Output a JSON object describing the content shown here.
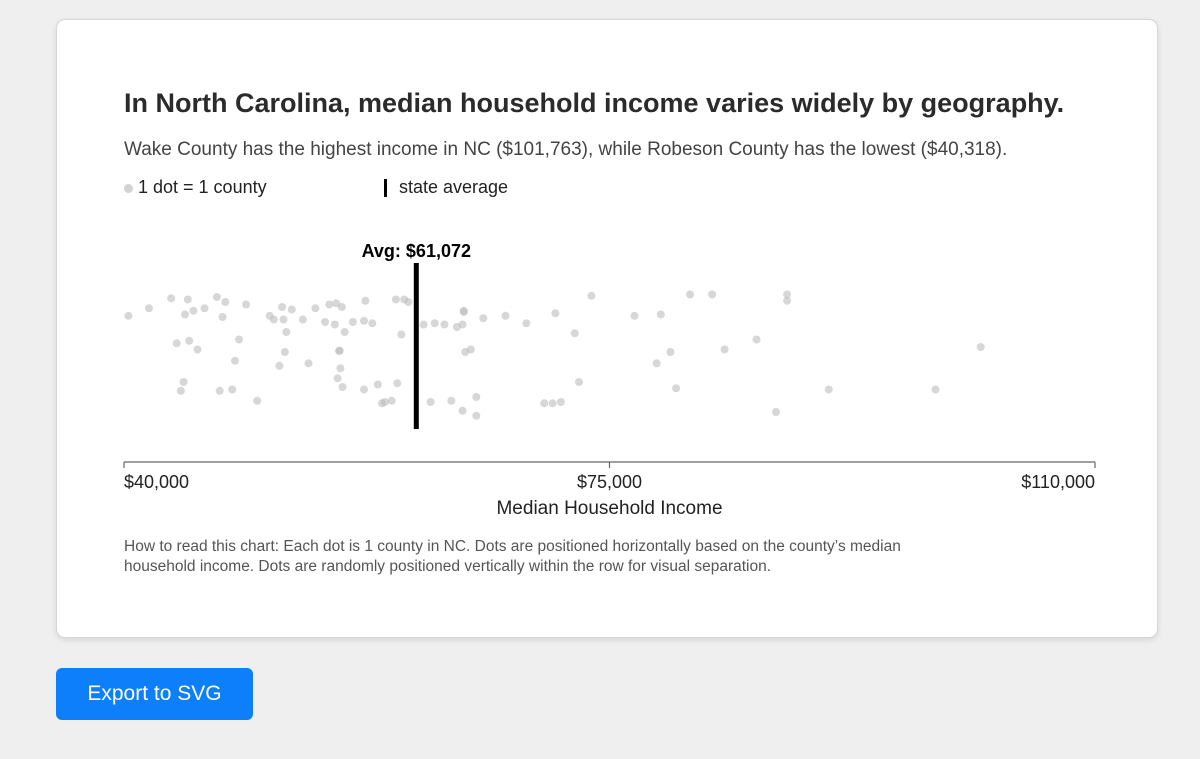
{
  "header": {
    "title": "In North Carolina, median household income varies widely by geography.",
    "subtitle": "Wake County has the highest income in NC ($101,763), while Robeson County has the lowest ($40,318)."
  },
  "legend": {
    "dot_label": "1 dot = 1 county",
    "line_label": "state average"
  },
  "note": "How to read this chart: Each dot is 1 county in NC. Dots are positioned horizontally based on the county’s median household income. Dots are randomly positioned vertically within the row for visual separation.",
  "export_button": {
    "label": "Export to SVG"
  },
  "colors": {
    "dot": "#bdbdbd",
    "average_line": "#000000",
    "button": "#0d7ffb",
    "page_background": "#efefef"
  },
  "chart_data": {
    "type": "scatter",
    "title": "In North Carolina, median household income varies widely by geography.",
    "xlabel": "Median Household Income",
    "ylabel": "",
    "xlim": [
      40000,
      110000
    ],
    "x_ticks": [
      {
        "value": 40000,
        "label": "$40,000"
      },
      {
        "value": 75000,
        "label": "$75,000"
      },
      {
        "value": 110000,
        "label": "$110,000"
      }
    ],
    "average": {
      "value": 61072,
      "label": "Avg: $61,072"
    },
    "grid": false,
    "y_meaning": "random vertical jitter (0 = top of row, 1 = bottom of row)",
    "points": [
      {
        "x": 40318,
        "y": 0.27
      },
      {
        "x": 41800,
        "y": 0.21
      },
      {
        "x": 43400,
        "y": 0.13
      },
      {
        "x": 43800,
        "y": 0.49
      },
      {
        "x": 44100,
        "y": 0.87
      },
      {
        "x": 44300,
        "y": 0.8
      },
      {
        "x": 44400,
        "y": 0.26
      },
      {
        "x": 44600,
        "y": 0.14
      },
      {
        "x": 44700,
        "y": 0.47
      },
      {
        "x": 45000,
        "y": 0.23
      },
      {
        "x": 45300,
        "y": 0.54
      },
      {
        "x": 45800,
        "y": 0.21
      },
      {
        "x": 46700,
        "y": 0.12
      },
      {
        "x": 46900,
        "y": 0.87
      },
      {
        "x": 47100,
        "y": 0.28
      },
      {
        "x": 47300,
        "y": 0.16
      },
      {
        "x": 47800,
        "y": 0.86
      },
      {
        "x": 48000,
        "y": 0.63
      },
      {
        "x": 48300,
        "y": 0.46
      },
      {
        "x": 48800,
        "y": 0.18
      },
      {
        "x": 49600,
        "y": 0.95
      },
      {
        "x": 50500,
        "y": 0.27
      },
      {
        "x": 50800,
        "y": 0.3
      },
      {
        "x": 51200,
        "y": 0.67
      },
      {
        "x": 51400,
        "y": 0.2
      },
      {
        "x": 51500,
        "y": 0.3
      },
      {
        "x": 51600,
        "y": 0.56
      },
      {
        "x": 51700,
        "y": 0.4
      },
      {
        "x": 52100,
        "y": 0.22
      },
      {
        "x": 52900,
        "y": 0.3
      },
      {
        "x": 53300,
        "y": 0.65
      },
      {
        "x": 53800,
        "y": 0.21
      },
      {
        "x": 54500,
        "y": 0.32
      },
      {
        "x": 54800,
        "y": 0.18
      },
      {
        "x": 55200,
        "y": 0.34
      },
      {
        "x": 55300,
        "y": 0.17
      },
      {
        "x": 55400,
        "y": 0.77
      },
      {
        "x": 55500,
        "y": 0.55
      },
      {
        "x": 55550,
        "y": 0.55
      },
      {
        "x": 55600,
        "y": 0.69
      },
      {
        "x": 55700,
        "y": 0.2
      },
      {
        "x": 55750,
        "y": 0.84
      },
      {
        "x": 55900,
        "y": 0.4
      },
      {
        "x": 56500,
        "y": 0.32
      },
      {
        "x": 57300,
        "y": 0.31
      },
      {
        "x": 57300,
        "y": 0.86
      },
      {
        "x": 57400,
        "y": 0.15
      },
      {
        "x": 57900,
        "y": 0.33
      },
      {
        "x": 58300,
        "y": 0.82
      },
      {
        "x": 58600,
        "y": 0.97
      },
      {
        "x": 58800,
        "y": 0.96
      },
      {
        "x": 59300,
        "y": 0.95
      },
      {
        "x": 59600,
        "y": 0.14
      },
      {
        "x": 59700,
        "y": 0.81
      },
      {
        "x": 60000,
        "y": 0.42
      },
      {
        "x": 60200,
        "y": 0.14
      },
      {
        "x": 60500,
        "y": 0.16
      },
      {
        "x": 61600,
        "y": 0.34
      },
      {
        "x": 62100,
        "y": 0.96
      },
      {
        "x": 62400,
        "y": 0.33
      },
      {
        "x": 63100,
        "y": 0.34
      },
      {
        "x": 63600,
        "y": 0.95
      },
      {
        "x": 64000,
        "y": 0.36
      },
      {
        "x": 64400,
        "y": 0.34
      },
      {
        "x": 64400,
        "y": 1.03
      },
      {
        "x": 64500,
        "y": 0.23
      },
      {
        "x": 64500,
        "y": 0.24
      },
      {
        "x": 64600,
        "y": 0.56
      },
      {
        "x": 65000,
        "y": 0.54
      },
      {
        "x": 65400,
        "y": 0.92
      },
      {
        "x": 65400,
        "y": 1.07
      },
      {
        "x": 65900,
        "y": 0.29
      },
      {
        "x": 67500,
        "y": 0.27
      },
      {
        "x": 69000,
        "y": 0.33
      },
      {
        "x": 70300,
        "y": 0.97
      },
      {
        "x": 70900,
        "y": 0.97
      },
      {
        "x": 71100,
        "y": 0.25
      },
      {
        "x": 71500,
        "y": 0.96
      },
      {
        "x": 72500,
        "y": 0.41
      },
      {
        "x": 72800,
        "y": 0.8
      },
      {
        "x": 73700,
        "y": 0.11
      },
      {
        "x": 76800,
        "y": 0.27
      },
      {
        "x": 78400,
        "y": 0.65
      },
      {
        "x": 78700,
        "y": 0.26
      },
      {
        "x": 79400,
        "y": 0.56
      },
      {
        "x": 79800,
        "y": 0.85
      },
      {
        "x": 80800,
        "y": 0.1
      },
      {
        "x": 82400,
        "y": 0.1
      },
      {
        "x": 83300,
        "y": 0.54
      },
      {
        "x": 85600,
        "y": 0.46
      },
      {
        "x": 87000,
        "y": 1.04
      },
      {
        "x": 87800,
        "y": 0.1
      },
      {
        "x": 87800,
        "y": 0.15
      },
      {
        "x": 90800,
        "y": 0.86
      },
      {
        "x": 98500,
        "y": 0.86
      },
      {
        "x": 101763,
        "y": 0.52
      }
    ]
  }
}
